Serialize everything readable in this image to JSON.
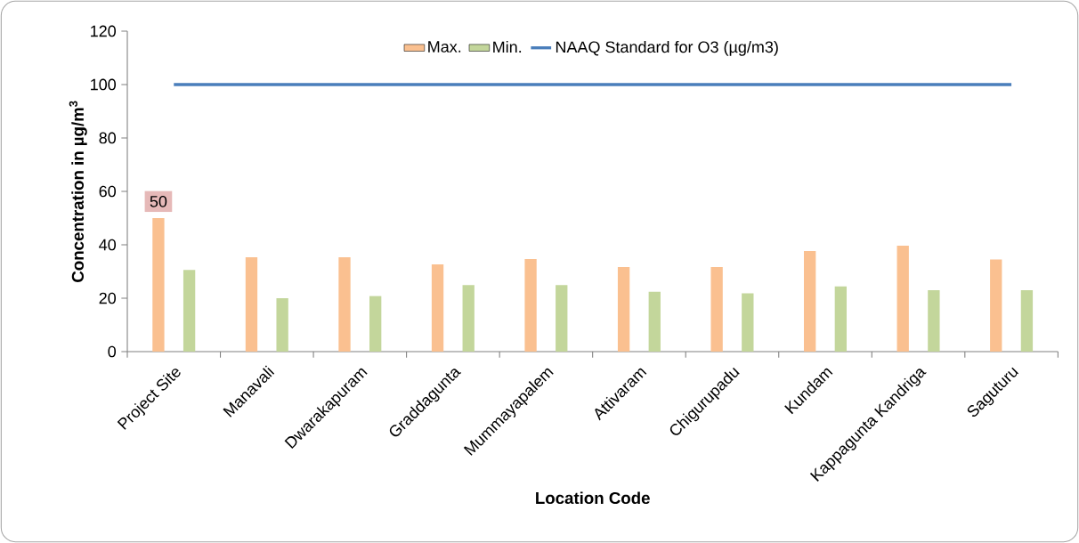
{
  "chart_data": {
    "type": "bar",
    "xlabel": "Location Code",
    "ylabel": "Concentration in µg/m$^{3}$",
    "categories": [
      "Project Site",
      "Manavali",
      "Dwarakapuram",
      "Graddagunta",
      "Mummayapalem",
      "Attivaram",
      "Chigurupadu",
      "Kundam",
      "Kappagunta Kandriga",
      "Saguturu"
    ],
    "series": [
      {
        "name": "Max.",
        "color": "#fac090",
        "values": [
          50,
          35.3,
          35.3,
          32.7,
          34.7,
          31.7,
          31.7,
          37.7,
          39.7,
          34.5
        ],
        "value_labels": [
          "50",
          null,
          null,
          null,
          null,
          null,
          null,
          null,
          null,
          null
        ]
      },
      {
        "name": "Min.",
        "color": "#c3d69b",
        "values": [
          30.6,
          20,
          20.8,
          24.9,
          24.9,
          22.4,
          21.8,
          24.4,
          23,
          23
        ]
      },
      {
        "name": "NAAQ Standard for O3 (µg/m3)",
        "type": "line",
        "color": "#4a7ebb",
        "values": [
          100,
          100,
          100,
          100,
          100,
          100,
          100,
          100,
          100,
          100
        ]
      }
    ],
    "ylim": [
      0,
      120
    ],
    "yticks": [
      0,
      20,
      40,
      60,
      80,
      100,
      120
    ],
    "legend": "top"
  }
}
